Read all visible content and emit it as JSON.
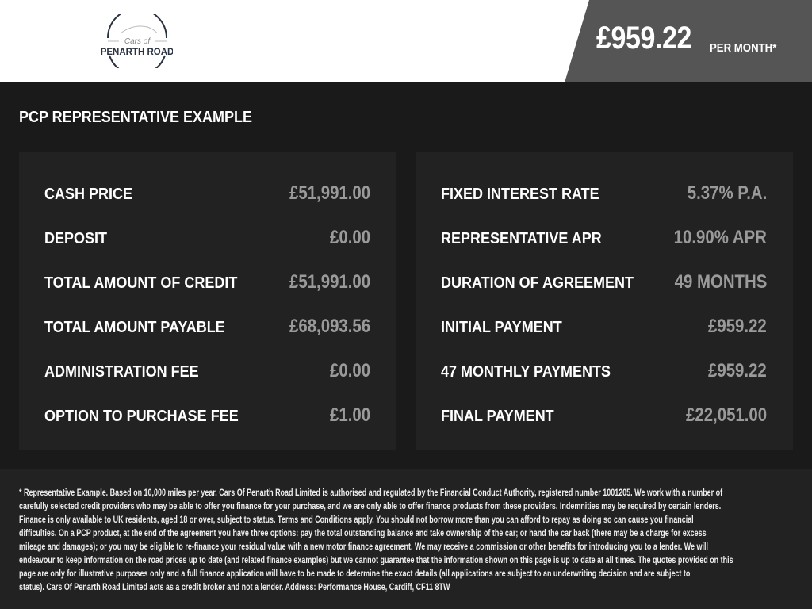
{
  "header": {
    "logo_text_top": "Cars of",
    "logo_text_bottom": "PENARTH ROAD",
    "price": "£959.22",
    "price_suffix": "PER MONTH*"
  },
  "section_title": "PCP REPRESENTATIVE EXAMPLE",
  "left_panel": [
    {
      "label": "CASH PRICE",
      "value": "£51,991.00"
    },
    {
      "label": "DEPOSIT",
      "value": "£0.00"
    },
    {
      "label": "TOTAL AMOUNT OF CREDIT",
      "value": "£51,991.00"
    },
    {
      "label": "TOTAL AMOUNT PAYABLE",
      "value": "£68,093.56"
    },
    {
      "label": "ADMINISTRATION FEE",
      "value": "£0.00"
    },
    {
      "label": "OPTION TO PURCHASE FEE",
      "value": "£1.00"
    }
  ],
  "right_panel": [
    {
      "label": "FIXED INTEREST RATE",
      "value": "5.37% P.A."
    },
    {
      "label": "REPRESENTATIVE APR",
      "value": "10.90% APR"
    },
    {
      "label": "DURATION OF AGREEMENT",
      "value": "49 MONTHS"
    },
    {
      "label": "INITIAL PAYMENT",
      "value": "£959.22"
    },
    {
      "label": "47 MONTHLY PAYMENTS",
      "value": "£959.22"
    },
    {
      "label": "FINAL PAYMENT",
      "value": "£22,051.00"
    }
  ],
  "disclaimer_lines": [
    "* Representative Example. Based on 10,000 miles per year. Cars Of Penarth Road Limited is authorised and regulated by the Financial Conduct Authority, registered number 1001205. We work with a number of",
    "carefully selected credit providers who may be able to offer you finance for your purchase, and we are only able to offer finance products from these providers. Indemnities may be required by certain lenders.",
    "Finance is only available to UK residents, aged 18 or over, subject to status. Terms and Conditions apply. You should not borrow more than you can afford to repay as doing so can cause you financial",
    "difficulties. On a PCP product, at the end of the agreement you have three options: pay the total outstanding balance and take ownership of the car; or hand the car back (there may be a charge for excess",
    "mileage and damages); or you may be eligible to re-finance your residual value with a new motor finance agreement. We may receive a commission or other benefits for introducing you to a lender. We will",
    "endeavour to keep information on the road prices up to date (and related finance examples) but we cannot guarantee that the information shown on this page is up to date at all times. The quotes provided on this",
    "page are only for illustrative purposes only and a full finance application will have to be made to determine the exact details (all applications are subject to an underwriting decision and are subject to",
    "status). Cars Of Penarth Road Limited acts as a credit broker and not a lender. Address: Performance House, Cardiff, CF11 8TW"
  ],
  "colors": {
    "header_bg": "#ffffff",
    "price_bg": "#555555",
    "body_bg": "#1a1a1a",
    "panel_bg": "#222222",
    "value_text": "#9a9a9a"
  }
}
